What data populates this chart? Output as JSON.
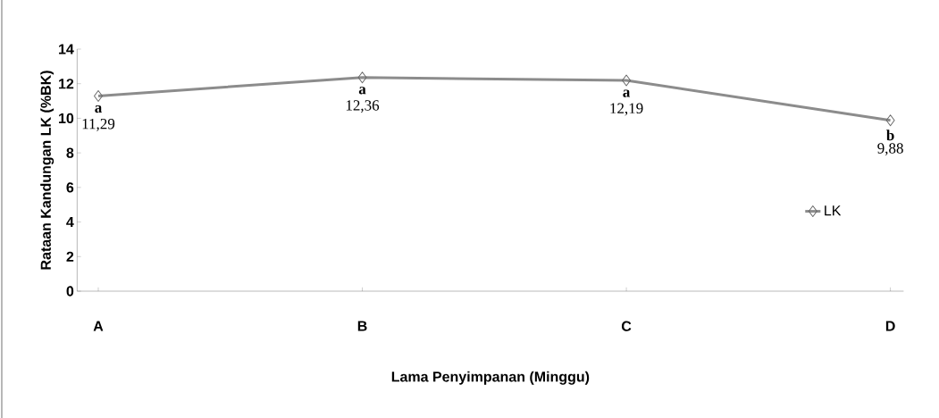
{
  "chart_data": {
    "type": "line",
    "xlabel": "Lama Penyimpanan (Minggu)",
    "ylabel": "Rataan Kandungan LK (%BK)",
    "categories": [
      "A",
      "B",
      "C",
      "D"
    ],
    "series": [
      {
        "name": "LK",
        "color": "#8c8c8c",
        "values": [
          11.29,
          12.36,
          12.19,
          9.88
        ],
        "value_labels": [
          "11,29",
          "12,36",
          "12,19",
          "9,88"
        ]
      }
    ],
    "annotations": [
      {
        "text": "a",
        "x": "A",
        "y": 11.29
      },
      {
        "text": "a",
        "x": "B",
        "y": 12.36
      },
      {
        "text": "a",
        "x": "C",
        "y": 12.19
      },
      {
        "text": "b",
        "x": "D",
        "y": 9.88
      }
    ],
    "ylim": [
      0,
      14
    ],
    "yticks": [
      0,
      2,
      4,
      6,
      8,
      10,
      12,
      14
    ],
    "marker": "diamond",
    "line_style": "solid",
    "legend": "right",
    "grid": false
  }
}
